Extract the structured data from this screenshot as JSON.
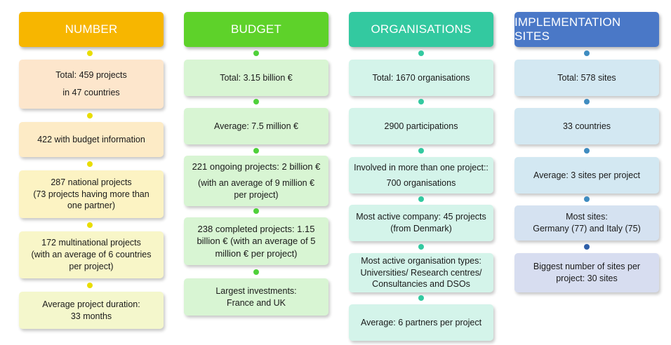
{
  "colors": {
    "number_header": "#f7b600",
    "number_dot": "#e9dd00",
    "budget_header": "#5ed22a",
    "budget_dot": "#4fd13a",
    "budget_box": "#d8f5d3",
    "org_header": "#33c9a0",
    "org_dot": "#33c9a0",
    "org_box": "#d4f4ea",
    "sites_header": "#4a78c7",
    "sites_dot": "#3f8cc0",
    "sites_box_a": "#d3e8f2",
    "sites_box_b": "#d7ddf0"
  },
  "columns": [
    {
      "header": "NUMBER",
      "items": [
        {
          "lines": [
            "Total: 459 projects",
            "in 47 countries"
          ]
        },
        {
          "lines": [
            "422 with budget information"
          ]
        },
        {
          "lines": [
            "287 national projects",
            "(73 projects  having more than",
            "one partner)"
          ]
        },
        {
          "lines": [
            "172 multinational projects",
            "(with an average of 6 countries",
            "per project)"
          ]
        },
        {
          "lines": [
            "Average project duration:",
            "33 months"
          ]
        }
      ]
    },
    {
      "header": "BUDGET",
      "items": [
        {
          "lines": [
            "Total: 3.15 billion €"
          ]
        },
        {
          "lines": [
            "Average: 7.5 million €"
          ]
        },
        {
          "lines": [
            "221 ongoing projects: 2 billion €",
            "(with an average of 9 million €",
            "per project)"
          ]
        },
        {
          "lines": [
            "238 completed projects: 1.15",
            "billion € (with an average of 5",
            "million € per project)"
          ]
        },
        {
          "lines": [
            "Largest investments:",
            "France and UK"
          ]
        }
      ]
    },
    {
      "header": "ORGANISATIONS",
      "items": [
        {
          "lines": [
            "Total: 1670 organisations"
          ]
        },
        {
          "lines": [
            "2900 participations"
          ]
        },
        {
          "lines": [
            "Involved in more than one project::",
            "700 organisations"
          ]
        },
        {
          "lines": [
            "Most active company: 45 projects",
            "(from Denmark)"
          ]
        },
        {
          "lines": [
            "Most active organisation types:",
            "Universities/ Research centres/",
            "Consultancies and DSOs"
          ]
        },
        {
          "lines": [
            "Average: 6 partners per project"
          ]
        }
      ]
    },
    {
      "header": "IMPLEMENTATION SITES",
      "items": [
        {
          "lines": [
            "Total: 578 sites"
          ]
        },
        {
          "lines": [
            "33 countries"
          ]
        },
        {
          "lines": [
            "Average: 3 sites per project"
          ]
        },
        {
          "lines": [
            "Most sites:",
            "Germany (77) and Italy (75)"
          ]
        },
        {
          "lines": [
            "Biggest number of sites per",
            "project: 30 sites"
          ]
        }
      ]
    }
  ]
}
